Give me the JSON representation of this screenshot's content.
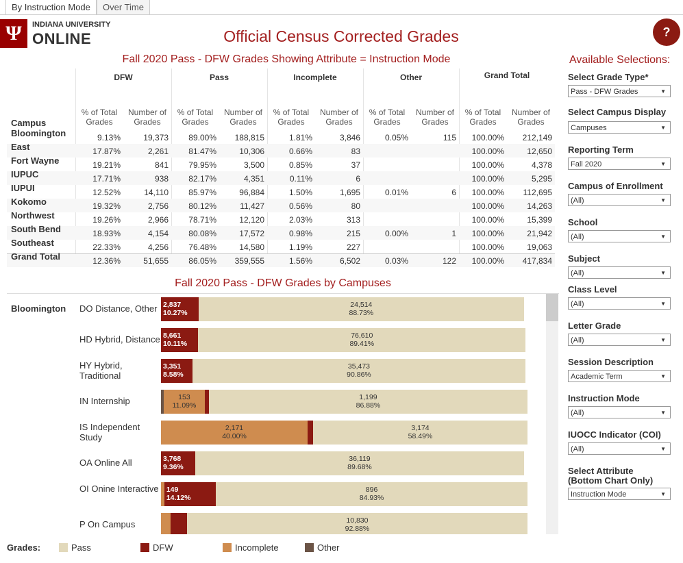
{
  "tabs": [
    "By Instruction Mode",
    "Over Time"
  ],
  "logo": {
    "line1": "INDIANA UNIVERSITY",
    "line2": "ONLINE"
  },
  "header": {
    "title": "Official Census Corrected Grades",
    "help": "?"
  },
  "table": {
    "title": "Fall 2020 Pass - DFW Grades Showing Attribute = Instruction Mode",
    "groups": [
      "DFW",
      "Pass",
      "Incomplete",
      "Other",
      "Grand Total"
    ],
    "row_header": "Campus",
    "subheaders": [
      "% of Total Grades",
      "Number of Grades",
      "% of Total Grades",
      "Number of Grades",
      "% of Total Grades",
      "Number of Grades",
      "% of Total Grades",
      "Number of Grades",
      "% of Total Grades",
      "Number of Grades"
    ],
    "rows": [
      [
        "Bloomington",
        "9.13%",
        "19,373",
        "89.00%",
        "188,815",
        "1.81%",
        "3,846",
        "0.05%",
        "115",
        "100.00%",
        "212,149"
      ],
      [
        "East",
        "17.87%",
        "2,261",
        "81.47%",
        "10,306",
        "0.66%",
        "83",
        null,
        null,
        "100.00%",
        "12,650"
      ],
      [
        "Fort Wayne",
        "19.21%",
        "841",
        "79.95%",
        "3,500",
        "0.85%",
        "37",
        null,
        null,
        "100.00%",
        "4,378"
      ],
      [
        "IUPUC",
        "17.71%",
        "938",
        "82.17%",
        "4,351",
        "0.11%",
        "6",
        null,
        null,
        "100.00%",
        "5,295"
      ],
      [
        "IUPUI",
        "12.52%",
        "14,110",
        "85.97%",
        "96,884",
        "1.50%",
        "1,695",
        "0.01%",
        "6",
        "100.00%",
        "112,695"
      ],
      [
        "Kokomo",
        "19.32%",
        "2,756",
        "80.12%",
        "11,427",
        "0.56%",
        "80",
        null,
        null,
        "100.00%",
        "14,263"
      ],
      [
        "Northwest",
        "19.26%",
        "2,966",
        "78.71%",
        "12,120",
        "2.03%",
        "313",
        null,
        null,
        "100.00%",
        "15,399"
      ],
      [
        "South Bend",
        "18.93%",
        "4,154",
        "80.08%",
        "17,572",
        "0.98%",
        "215",
        "0.00%",
        "1",
        "100.00%",
        "21,942"
      ],
      [
        "Southeast",
        "22.33%",
        "4,256",
        "76.48%",
        "14,580",
        "1.19%",
        "227",
        null,
        null,
        "100.00%",
        "19,063"
      ],
      [
        "Grand Total",
        "12.36%",
        "51,655",
        "86.05%",
        "359,555",
        "1.56%",
        "6,502",
        "0.03%",
        "122",
        "100.00%",
        "417,834"
      ]
    ]
  },
  "chart": {
    "title": "Fall 2020 Pass - DFW Grades by Campuses",
    "campus": "Bloomington",
    "xlim": [
      0,
      100
    ],
    "colors": {
      "Pass": "#e2d9bb",
      "DFW": "#8b1a12",
      "Incomplete": "#cf8c4f",
      "Other": "#6b5446"
    },
    "rows": [
      {
        "mode": "DO Distance, Other",
        "segments": [
          {
            "grade": "DFW",
            "percent": 10.27,
            "count_label": "2,837",
            "percent_label": "10.27%"
          },
          {
            "grade": "Pass",
            "percent": 88.73,
            "count_label": "24,514",
            "percent_label": "88.73%"
          }
        ]
      },
      {
        "mode": "HD Hybrid, Distance",
        "segments": [
          {
            "grade": "DFW",
            "percent": 10.11,
            "count_label": "8,661",
            "percent_label": "10.11%"
          },
          {
            "grade": "Pass",
            "percent": 89.41,
            "count_label": "76,610",
            "percent_label": "89.41%"
          }
        ]
      },
      {
        "mode": "HY Hybrid, Traditional",
        "segments": [
          {
            "grade": "DFW",
            "percent": 8.58,
            "count_label": "3,351",
            "percent_label": "8.58%"
          },
          {
            "grade": "Pass",
            "percent": 90.86,
            "count_label": "35,473",
            "percent_label": "90.86%"
          }
        ]
      },
      {
        "mode": "IN Internship",
        "segments": [
          {
            "grade": "Other",
            "percent": 0.8
          },
          {
            "grade": "Incomplete",
            "percent": 11.09,
            "count_label": "153",
            "percent_label": "11.09%"
          },
          {
            "grade": "DFW",
            "percent": 1.2
          },
          {
            "grade": "Pass",
            "percent": 86.88,
            "count_label": "1,199",
            "percent_label": "86.88%"
          }
        ]
      },
      {
        "mode": "IS Independent Study",
        "segments": [
          {
            "grade": "Incomplete",
            "percent": 40.0,
            "count_label": "2,171",
            "percent_label": "40.00%"
          },
          {
            "grade": "DFW",
            "percent": 1.5
          },
          {
            "grade": "Pass",
            "percent": 58.49,
            "count_label": "3,174",
            "percent_label": "58.49%"
          }
        ]
      },
      {
        "mode": "OA Online All",
        "segments": [
          {
            "grade": "DFW",
            "percent": 9.36,
            "count_label": "3,768",
            "percent_label": "9.36%"
          },
          {
            "grade": "Pass",
            "percent": 89.68,
            "count_label": "36,119",
            "percent_label": "89.68%"
          }
        ]
      },
      {
        "mode": "OI Onine Interactive",
        "segments": [
          {
            "grade": "Incomplete",
            "percent": 0.9
          },
          {
            "grade": "DFW",
            "percent": 14.12,
            "count_label": "149",
            "percent_label": "14.12%"
          },
          {
            "grade": "Pass",
            "percent": 84.93,
            "count_label": "896",
            "percent_label": "84.93%"
          }
        ]
      },
      {
        "mode": "P On Campus",
        "segments": [
          {
            "grade": "Incomplete",
            "percent": 2.7
          },
          {
            "grade": "DFW",
            "percent": 4.4
          },
          {
            "grade": "Pass",
            "percent": 92.88,
            "count_label": "10,830",
            "percent_label": "92.88%"
          }
        ]
      }
    ]
  },
  "legend": {
    "title": "Grades:",
    "items": [
      "Pass",
      "DFW",
      "Incomplete",
      "Other"
    ]
  },
  "filters": {
    "title": "Available Selections:",
    "items": [
      {
        "label": "Select Grade Type*",
        "value": "Pass - DFW Grades"
      },
      {
        "label": "Select Campus Display",
        "value": "Campuses"
      },
      {
        "label": "Reporting Term",
        "value": "Fall 2020"
      },
      {
        "label": "Campus of Enrollment",
        "value": "(All)"
      },
      {
        "label": "School",
        "value": "(All)"
      },
      {
        "label": "Subject",
        "value": "(All)"
      },
      {
        "label": "Class Level",
        "value": "(All)"
      },
      {
        "label": "Letter Grade",
        "value": "(All)"
      },
      {
        "label": "Session Description",
        "value": "Academic Term"
      },
      {
        "label": "Instruction Mode",
        "value": "(All)"
      },
      {
        "label": "IUOCC Indicator (COI)",
        "value": "(All)"
      },
      {
        "label": "Select Attribute (Bottom Chart Only)",
        "value": "Instruction Mode"
      }
    ]
  }
}
